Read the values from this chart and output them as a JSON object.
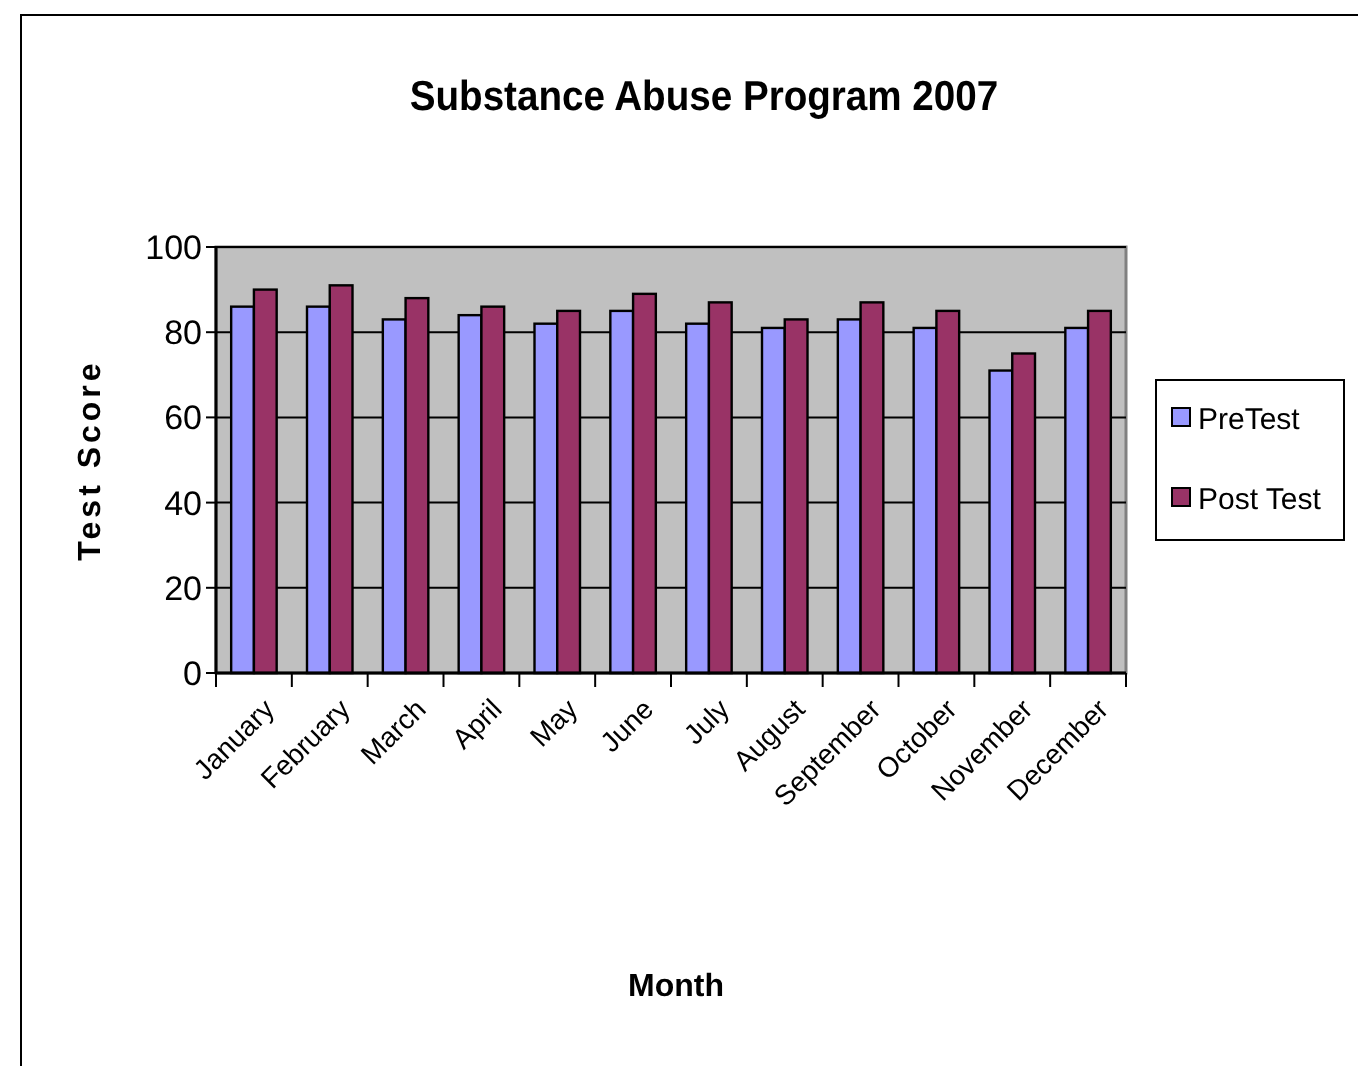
{
  "chart_data": {
    "type": "bar",
    "title": "Substance Abuse Program 2007",
    "xlabel": "Month",
    "ylabel": "Test Score",
    "categories": [
      "January",
      "February",
      "March",
      "April",
      "May",
      "June",
      "July",
      "August",
      "September",
      "October",
      "November",
      "December"
    ],
    "series": [
      {
        "name": "PreTest",
        "color": "#9999ff",
        "values": [
          86,
          86,
          83,
          84,
          82,
          85,
          82,
          81,
          83,
          81,
          71,
          81
        ]
      },
      {
        "name": "Post Test",
        "color": "#993366",
        "values": [
          90,
          91,
          88,
          86,
          85,
          89,
          87,
          83,
          87,
          85,
          75,
          85
        ]
      }
    ],
    "ylim": [
      0,
      100
    ],
    "yticks": [
      0,
      20,
      40,
      60,
      80,
      100
    ],
    "grid": "y",
    "legend": "right"
  }
}
